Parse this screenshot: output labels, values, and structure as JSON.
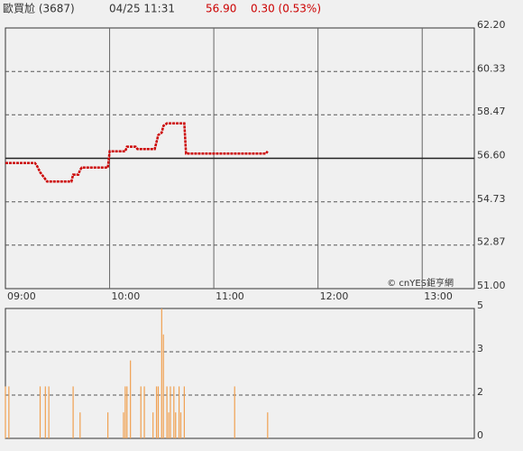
{
  "header": {
    "name": "歐買尬 (3687)",
    "datetime": "04/25 11:31",
    "price": "56.90",
    "change": "0.30 (0.53%)"
  },
  "chart_data": [
    {
      "type": "line",
      "annotation": "© cnYES鉅亨網",
      "color": "#cc0000",
      "x": [
        "09:00",
        "09:17",
        "09:18",
        "09:20",
        "09:22",
        "09:24",
        "09:38",
        "09:39",
        "09:42",
        "09:43",
        "09:44",
        "09:59",
        "10:00",
        "10:09",
        "10:10",
        "10:15",
        "10:16",
        "10:26",
        "10:27",
        "10:28",
        "10:30",
        "10:31",
        "10:33",
        "10:43",
        "10:44",
        "11:30",
        "11:31"
      ],
      "values": [
        56.4,
        56.4,
        56.3,
        56.0,
        55.8,
        55.6,
        55.6,
        55.9,
        55.9,
        56.1,
        56.2,
        56.2,
        56.9,
        56.9,
        57.1,
        57.1,
        57.0,
        57.0,
        57.3,
        57.6,
        57.7,
        58.0,
        58.1,
        58.1,
        56.8,
        56.8,
        56.9
      ],
      "previous_close": 56.6,
      "xlim": [
        "09:00",
        "13:30"
      ],
      "xticks": [
        "09:00",
        "10:00",
        "11:00",
        "12:00",
        "13:00"
      ],
      "ylim": [
        51,
        62.2
      ],
      "yticks": [
        {
          "value": 62.2,
          "label": "62.20"
        },
        60.33,
        58.47,
        {
          "value": 56.6,
          "label": "56.60"
        },
        54.73,
        52.87,
        {
          "value": 51,
          "label": "51.00"
        }
      ],
      "grid": true
    },
    {
      "type": "bar",
      "color": "#f0a050",
      "x": [
        "09:00",
        "09:02",
        "09:20",
        "09:23",
        "09:25",
        "09:39",
        "09:43",
        "09:59",
        "10:08",
        "10:09",
        "10:10",
        "10:12",
        "10:18",
        "10:20",
        "10:25",
        "10:27",
        "10:28",
        "10:30",
        "10:31",
        "10:33",
        "10:34",
        "10:35",
        "10:37",
        "10:38",
        "10:40",
        "10:41",
        "10:43",
        "11:12",
        "11:31"
      ],
      "values": [
        1.8,
        1.8,
        1.8,
        1.8,
        1.8,
        1.8,
        0.9,
        0.9,
        0.9,
        1.8,
        1.8,
        2.7,
        1.8,
        1.8,
        0.9,
        1.8,
        1.8,
        4.5,
        3.6,
        1.8,
        0.9,
        1.8,
        1.8,
        0.9,
        1.8,
        0.9,
        1.8,
        1.8,
        0.9
      ],
      "xlim": [
        "09:00",
        "13:30"
      ],
      "ylim": [
        0,
        4.5
      ],
      "yticks": [
        {
          "value": 4.5,
          "label": "5"
        },
        3,
        {
          "value": 1.5,
          "label": "2"
        },
        0
      ],
      "grid": true
    }
  ]
}
